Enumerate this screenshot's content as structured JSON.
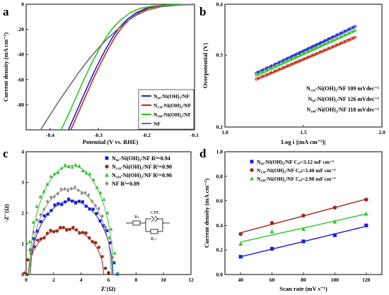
{
  "chart_data": [
    {
      "panel": "a",
      "type": "line",
      "xlabel": "Potential (V vs. RHE)",
      "ylabel": "Current density (mA cm⁻²)",
      "xlim": [
        -0.45,
        -0.1
      ],
      "ylim": [
        -100,
        0
      ],
      "xticks": [
        "-0.4",
        "-0.3",
        "-0.2",
        "-0.1"
      ],
      "yticks": [
        "0",
        "-20",
        "-40",
        "-60",
        "-80"
      ],
      "legend_position": "bottom-right",
      "series": [
        {
          "name": "N₉₀-Ni(OH)₂/NF",
          "color": "#1f1fd6",
          "x": [
            -0.362,
            -0.345,
            -0.33,
            -0.315,
            -0.3,
            -0.285,
            -0.27,
            -0.255,
            -0.24,
            -0.22,
            -0.2,
            -0.18,
            -0.15,
            -0.12,
            -0.1
          ],
          "y": [
            -100,
            -85,
            -72,
            -59,
            -47,
            -36,
            -26,
            -18,
            -12,
            -6.5,
            -3.2,
            -1.6,
            -0.6,
            -0.2,
            -0.1
          ]
        },
        {
          "name": "N₁₃₀-Ni(OH)₂/NF",
          "color": "#c62a14",
          "x": [
            -0.357,
            -0.34,
            -0.325,
            -0.31,
            -0.295,
            -0.28,
            -0.265,
            -0.25,
            -0.235,
            -0.215,
            -0.195,
            -0.175,
            -0.15,
            -0.12,
            -0.1
          ],
          "y": [
            -100,
            -85,
            -72,
            -59,
            -47,
            -36,
            -26,
            -18,
            -12,
            -6.5,
            -3.2,
            -1.6,
            -0.6,
            -0.2,
            -0.1
          ]
        },
        {
          "name": "N₁₈₀-Ni(OH)₂/NF",
          "color": "#2fc42a",
          "x": [
            -0.377,
            -0.36,
            -0.345,
            -0.33,
            -0.315,
            -0.3,
            -0.285,
            -0.27,
            -0.255,
            -0.235,
            -0.215,
            -0.19,
            -0.16,
            -0.13,
            -0.1
          ],
          "y": [
            -100,
            -86,
            -73,
            -60,
            -48,
            -37,
            -27,
            -19,
            -13,
            -7,
            -3.5,
            -1.6,
            -0.6,
            -0.2,
            -0.1
          ]
        },
        {
          "name": "NF",
          "color": "#6d6d6d",
          "x": [
            -0.42,
            -0.4,
            -0.38,
            -0.36,
            -0.34,
            -0.32,
            -0.3,
            -0.28,
            -0.26,
            -0.24,
            -0.22,
            -0.2,
            -0.17,
            -0.13,
            -0.1
          ],
          "y": [
            -100,
            -88,
            -76,
            -65,
            -54,
            -44,
            -35,
            -27,
            -20,
            -13.5,
            -8.5,
            -5,
            -2,
            -0.6,
            -0.2
          ]
        }
      ]
    },
    {
      "panel": "b",
      "type": "scatter",
      "xlabel": "Log i |(mA cm⁻²)|",
      "ylabel": "Overpotential (V)",
      "xlim": [
        1.0,
        2.0
      ],
      "ylim": [
        0.2,
        0.4
      ],
      "xticks": [
        "1.0",
        "1.5",
        "2.0"
      ],
      "yticks": [
        "0.2",
        "0.3",
        "0.4"
      ],
      "yscale": "log",
      "series": [
        {
          "name": "N₁₃₀-Ni(OH)₂/NF 109 mVdec⁻¹",
          "color": "#c62a14",
          "x": [
            1.2,
            1.83
          ],
          "y": [
            0.262,
            0.332
          ]
        },
        {
          "name": "N₉₀-Ni(OH)₂/NF 126 mVdec⁻¹",
          "color": "#1f1fd6",
          "x": [
            1.2,
            1.83
          ],
          "y": [
            0.271,
            0.353
          ]
        },
        {
          "name": "N₁₈₀-Ni(OH)₂/NF 118 mVdec⁻¹",
          "color": "#2fc42a",
          "x": [
            1.2,
            1.83
          ],
          "y": [
            0.268,
            0.345
          ]
        }
      ]
    },
    {
      "panel": "c",
      "type": "scatter",
      "xlabel": "Z'(Ω)",
      "ylabel": "-Z''(Ω)",
      "xlim": [
        0,
        12
      ],
      "ylim": [
        0,
        4
      ],
      "xticks": [
        "0",
        "2",
        "4",
        "6",
        "8",
        "10",
        "12"
      ],
      "yticks": [
        "0",
        "1",
        "2",
        "3",
        "4"
      ],
      "legend_position": "top-right",
      "circuit_labels": {
        "r1": "Rₛ",
        "cpe": "CPE",
        "r2": "R꜀ₜ"
      },
      "series": [
        {
          "name": "N₉₀-Ni(OH)₂/NF R²=0.94",
          "color": "#1f1fd6",
          "marker": "square",
          "center": 3.3,
          "radius": 3.0,
          "peak": 2.4
        },
        {
          "name": "N₁₃₀-Ni(OH)₂/NF R²=0.90",
          "color": "#9c2a1a",
          "marker": "circle",
          "center": 2.9,
          "radius": 2.75,
          "peak": 1.5
        },
        {
          "name": "N₁₈₀-Ni(OH)₂/NF R²=0.96",
          "color": "#2fc42a",
          "marker": "triangle",
          "center": 3.3,
          "radius": 3.05,
          "peak": 3.55
        },
        {
          "name": "NF R²=0.89",
          "color": "#8a8a8a",
          "marker": "diamond",
          "center": 3.25,
          "radius": 2.95,
          "peak": 2.8
        }
      ]
    },
    {
      "panel": "d",
      "type": "scatter",
      "xlabel": "Scan rate (mV s⁻¹)",
      "ylabel": "Current density (mA cm⁻²)",
      "xlim": [
        30,
        130
      ],
      "ylim": [
        0,
        1.0
      ],
      "xticks": [
        "40",
        "60",
        "80",
        "100",
        "120"
      ],
      "yticks": [
        "0.0",
        "0.2",
        "0.4",
        "0.6",
        "0.8",
        "1.0"
      ],
      "legend_position": "top-left",
      "x": [
        40,
        60,
        80,
        100,
        120
      ],
      "series": [
        {
          "name": "N₉₀-Ni(OH)₂/NF C꜀ₗ=3.12 mF cm⁻²",
          "color": "#1f1fd6",
          "marker": "square",
          "values": [
            0.145,
            0.21,
            0.27,
            0.32,
            0.4
          ]
        },
        {
          "name": "N₁₃₀-Ni(OH)₂/NF C꜀ₗ=3.40 mF cm⁻²",
          "color": "#9c2a1a",
          "marker": "circle",
          "values": [
            0.33,
            0.42,
            0.48,
            0.545,
            0.61
          ]
        },
        {
          "name": "N₁₈₀-Ni(OH)₂/NF C꜀ₗ=2.98 mF cm⁻²",
          "color": "#2fc42a",
          "marker": "triangle",
          "values": [
            0.25,
            0.35,
            0.37,
            0.43,
            0.495
          ]
        }
      ]
    }
  ]
}
